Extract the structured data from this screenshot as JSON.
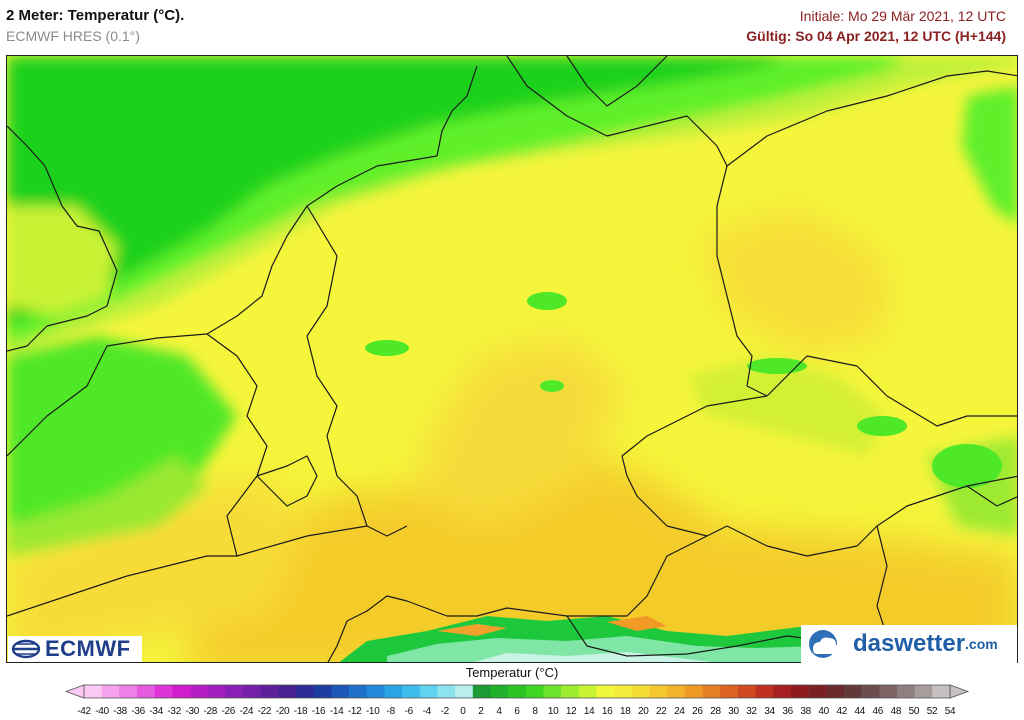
{
  "header": {
    "title": "2 Meter: Temperatur (°C).",
    "model": "ECMWF HRES (0.1°)",
    "initial": "Initiale: Mo 29 Mär 2021, 12 UTC",
    "valid": "Gültig: So 04 Apr 2021, 12 UTC (H+144)"
  },
  "logos": {
    "left": "ECMWF",
    "right_name": "daswetter",
    "right_tld": ".com"
  },
  "colors": {
    "sea_green": "#1fd11f",
    "green_light": "#5ef02a",
    "land_yellow_green": "#d8f032",
    "land_yellow": "#f5f53c",
    "land_yellow_warm": "#f8e33a",
    "land_orange": "#f4cc2c",
    "alpine_green": "#1ec83c",
    "border": "#1a1a1a"
  },
  "legend": {
    "title": "Temperatur (°C)",
    "ticks": [
      "-42",
      "-40",
      "-38",
      "-36",
      "-34",
      "-32",
      "-30",
      "-28",
      "-26",
      "-24",
      "-22",
      "-20",
      "-18",
      "-16",
      "-14",
      "-12",
      "-10",
      "-8",
      "-6",
      "-4",
      "-2",
      "0",
      "2",
      "4",
      "6",
      "8",
      "10",
      "12",
      "14",
      "16",
      "18",
      "20",
      "22",
      "24",
      "26",
      "28",
      "30",
      "32",
      "34",
      "36",
      "38",
      "40",
      "42",
      "44",
      "46",
      "48",
      "50",
      "52",
      "54"
    ],
    "colors": [
      "#fcc9f3",
      "#f6a3ee",
      "#ee7fe6",
      "#e65ade",
      "#dc34d6",
      "#cf1ccc",
      "#b81dc4",
      "#9f1ebd",
      "#8a1fb5",
      "#741fa8",
      "#5e1f9b",
      "#48208f",
      "#2c2a94",
      "#1d3da3",
      "#1d57b6",
      "#1e70c8",
      "#2289d8",
      "#2ca3e3",
      "#3cbdec",
      "#60d3f0",
      "#8de2ef",
      "#b8eeee",
      "#1c9a34",
      "#20b02a",
      "#29c424",
      "#3fd523",
      "#6ce22a",
      "#9eec2f",
      "#c8f333",
      "#eef73a",
      "#f6ec3c",
      "#f6dd36",
      "#f5c82f",
      "#f2b229",
      "#ee9a24",
      "#e67f22",
      "#dc6422",
      "#cf4a22",
      "#bf3022",
      "#a82122",
      "#8f1a1e",
      "#7a1f23",
      "#6a2a2b",
      "#633838",
      "#6b4d4d",
      "#7c6464",
      "#8f8080",
      "#a89d9d",
      "#c6c0c0"
    ]
  }
}
